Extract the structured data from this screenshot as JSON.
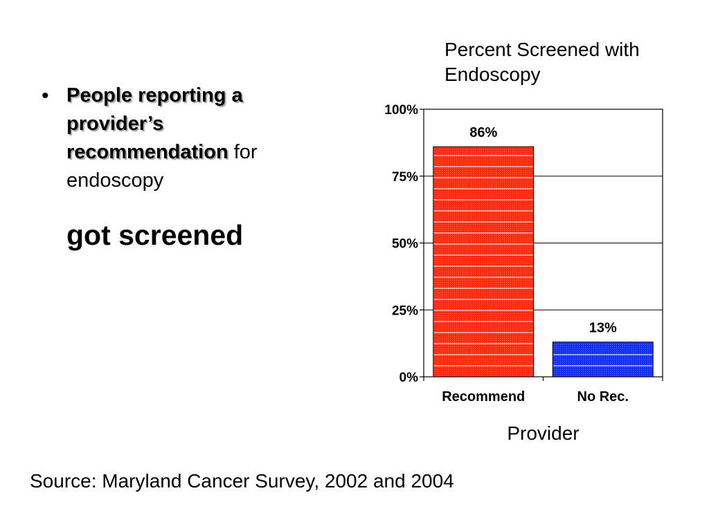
{
  "slide": {
    "bullet": {
      "emphasis": "People reporting a provider’s recommendation",
      "rest": " for endoscopy"
    },
    "conclusion": "got screened",
    "source": "Source:  Maryland Cancer Survey, 2002 and 2004"
  },
  "chart_data": {
    "type": "bar",
    "title": "Percent Screened with Endoscopy",
    "xlabel": "Provider",
    "ylabel": "",
    "categories": [
      "Recommend",
      "No Rec."
    ],
    "values": [
      86,
      13
    ],
    "data_labels": [
      "86%",
      "13%"
    ],
    "yticks": [
      "0%",
      "25%",
      "50%",
      "75%",
      "100%"
    ],
    "ylim": [
      0,
      100
    ],
    "grid": true,
    "legend": "none",
    "colors": [
      "#ff2a10",
      "#1530ee"
    ]
  }
}
